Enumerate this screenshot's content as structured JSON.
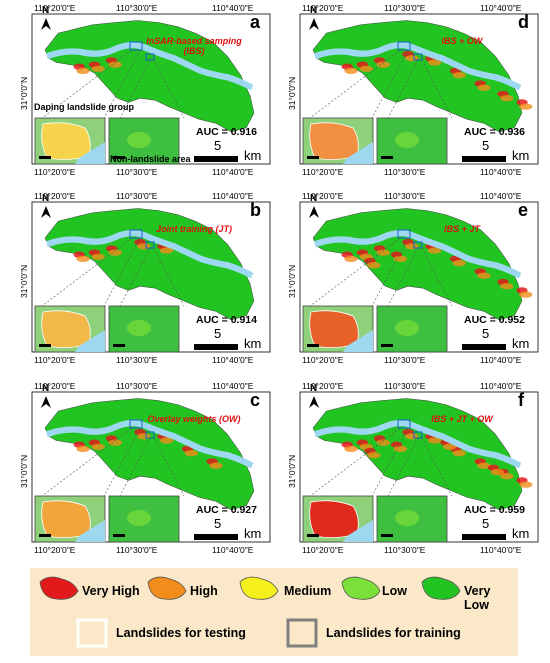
{
  "coords": {
    "top": [
      "110°20'0\"E",
      "110°30'0\"E",
      "110°40'0\"E"
    ],
    "bottom": [
      "110°20'0\"E",
      "110°30'0\"E",
      "110°40'0\"E"
    ],
    "lat": "31°0'0\"N"
  },
  "north_label": "N",
  "panel_a_labels": {
    "group": "Daping landslide group",
    "nonlandslide": "Non-landslide area"
  },
  "scale": {
    "value": "5",
    "unit": "km"
  },
  "panels": [
    {
      "letter": "a",
      "method_line1": "InSAR-based samping",
      "method_line2": "(IBS)",
      "auc": "AUC = 0.916"
    },
    {
      "letter": "b",
      "method_line1": "Joint training (JT)",
      "method_line2": "",
      "auc": "AUC = 0.914"
    },
    {
      "letter": "c",
      "method_line1": "Overlay weights (OW)",
      "method_line2": "",
      "auc": "AUC = 0.927"
    },
    {
      "letter": "d",
      "method_line1": "IBS + OW",
      "method_line2": "",
      "auc": "AUC = 0.936"
    },
    {
      "letter": "e",
      "method_line1": "IBS + JT",
      "method_line2": "",
      "auc": "AUC = 0.952"
    },
    {
      "letter": "f",
      "method_line1": "IBS + JT + OW",
      "method_line2": "",
      "auc": "AUC = 0.959"
    }
  ],
  "legend": {
    "classes": [
      {
        "label": "Very High",
        "color": "#e31a1c"
      },
      {
        "label": "High",
        "color": "#f28c1a"
      },
      {
        "label": "Medium",
        "color": "#f5f01c"
      },
      {
        "label": "Low",
        "color": "#7be03a"
      },
      {
        "label": "Very Low",
        "color": "#22c422"
      }
    ],
    "outlines": [
      {
        "label": "Landslides for testing",
        "color": "#ffffff"
      },
      {
        "label": "Landslides for training",
        "color": "#808080"
      }
    ]
  }
}
